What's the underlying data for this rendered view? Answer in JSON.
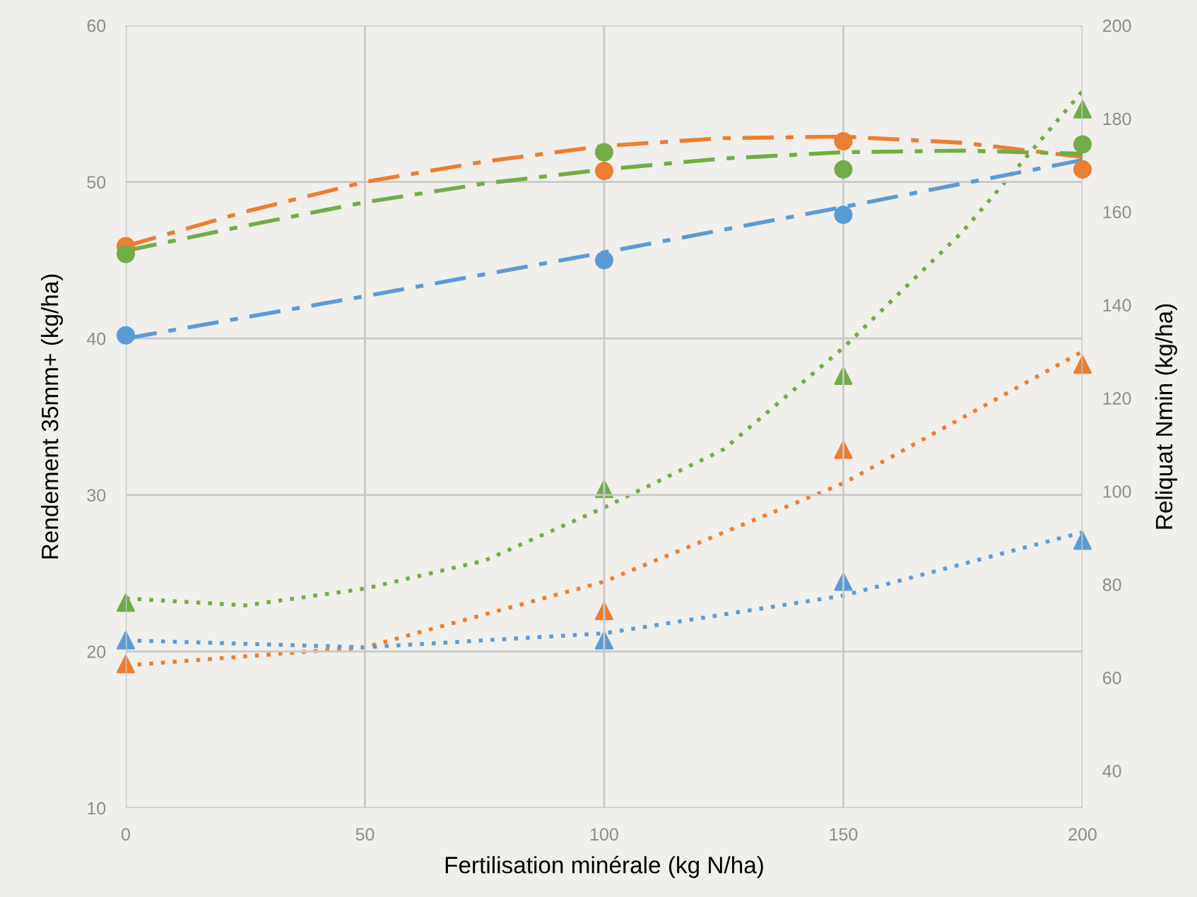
{
  "chart_data": {
    "type": "scatter",
    "xlabel": "Fertilisation minérale (kg N/ha)",
    "ylabel": "Rendement 35mm+ (kg/ha)",
    "y2label": "Reliquat Nmin (kg/ha)",
    "xlim": [
      0,
      200
    ],
    "xticks": [
      0,
      50,
      100,
      150,
      200
    ],
    "ylim": [
      10,
      60
    ],
    "yticks": [
      10,
      20,
      30,
      40,
      50,
      60
    ],
    "y2lim": [
      32,
      200
    ],
    "y2ticks": [
      40,
      60,
      80,
      100,
      120,
      140,
      160,
      180,
      200
    ],
    "grid": true,
    "legend": false,
    "series": [
      {
        "color": "#ed7d31",
        "marker": "circle",
        "x": [
          0,
          100,
          150,
          200
        ],
        "values": [
          45.9,
          50.7,
          52.6,
          50.8
        ]
      },
      {
        "color": "#70ad47",
        "marker": "circle",
        "x": [
          0,
          100,
          150,
          200
        ],
        "values": [
          45.4,
          51.9,
          50.8,
          52.4
        ]
      },
      {
        "color": "#5b9bd5",
        "marker": "circle",
        "x": [
          0,
          100,
          150
        ],
        "values": [
          40.2,
          45.0,
          47.9
        ]
      },
      {
        "axis": "y2",
        "color": "#70ad47",
        "marker": "triangle",
        "x": [
          0,
          100,
          150,
          200
        ],
        "values": [
          76.1,
          100.5,
          124.8,
          182
        ]
      },
      {
        "axis": "y2",
        "color": "#ed7d31",
        "marker": "triangle",
        "x": [
          0,
          100,
          150,
          200
        ],
        "values": [
          62.9,
          74.3,
          108.9,
          127.2
        ]
      },
      {
        "axis": "y2",
        "color": "#5b9bd5",
        "marker": "triangle",
        "x": [
          0,
          100,
          150,
          200
        ],
        "values": [
          68.0,
          68.0,
          80.6,
          89.4
        ]
      },
      {
        "type": "line",
        "color": "#ed7d31",
        "line_style": "dashdot",
        "x": [
          0,
          25,
          50,
          75,
          100,
          125,
          150,
          175,
          200
        ],
        "values": [
          45.9,
          48.1,
          50.0,
          51.3,
          52.3,
          52.8,
          52.9,
          52.5,
          51.6
        ]
      },
      {
        "type": "line",
        "color": "#70ad47",
        "line_style": "dashdot",
        "x": [
          0,
          25,
          50,
          75,
          100,
          125,
          150,
          175,
          200
        ],
        "values": [
          45.6,
          47.2,
          48.7,
          49.9,
          50.8,
          51.5,
          51.9,
          52.0,
          51.8
        ]
      },
      {
        "type": "line",
        "color": "#5b9bd5",
        "line_style": "dashdot",
        "x": [
          0,
          50,
          100,
          150,
          200
        ],
        "values": [
          40.0,
          42.7,
          45.5,
          48.4,
          51.4
        ]
      },
      {
        "type": "line",
        "axis": "y2",
        "color": "#70ad47",
        "line_style": "dotted",
        "x": [
          0,
          25,
          50,
          75,
          100,
          125,
          150,
          175,
          200
        ],
        "values": [
          77.0,
          75.5,
          79.1,
          85.1,
          96.5,
          109,
          130.8,
          155.8,
          185.9
        ]
      },
      {
        "type": "line",
        "axis": "y2",
        "color": "#ed7d31",
        "line_style": "dotted",
        "x": [
          0,
          50,
          100,
          150,
          200
        ],
        "values": [
          62.6,
          66.5,
          80.6,
          101.7,
          130
        ]
      },
      {
        "type": "line",
        "axis": "y2",
        "color": "#5b9bd5",
        "line_style": "dotted",
        "x": [
          0,
          50,
          100,
          150,
          200
        ],
        "values": [
          68,
          66.5,
          69.5,
          77.6,
          91.2
        ]
      }
    ]
  }
}
